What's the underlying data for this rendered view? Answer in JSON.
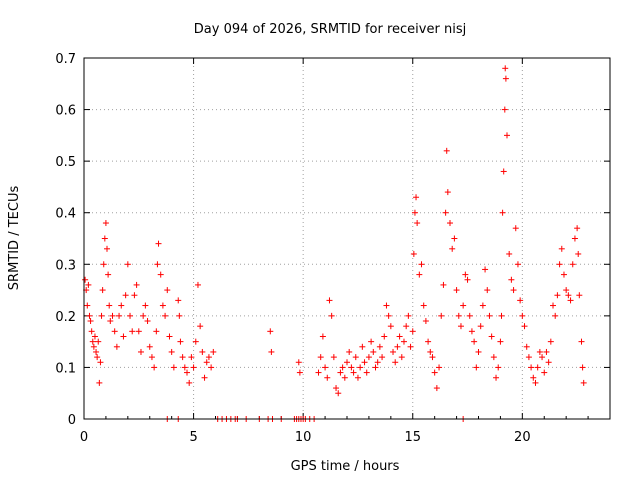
{
  "chart_data": {
    "type": "scatter",
    "title": "Day 094 of 2026, SRMTID for receiver nisj",
    "xlabel": "GPS time / hours",
    "ylabel": "SRMTID / TECUs",
    "xlim": [
      0,
      24
    ],
    "ylim": [
      0,
      0.7
    ],
    "xticks": [
      0,
      5,
      10,
      15,
      20
    ],
    "xtick_labels": [
      "0",
      "5",
      "10",
      "15",
      "20"
    ],
    "yticks": [
      0,
      0.1,
      0.2,
      0.3,
      0.4,
      0.5,
      0.6,
      0.7
    ],
    "ytick_labels": [
      "0",
      "0.1",
      "0.2",
      "0.3",
      "0.4",
      "0.5",
      "0.6",
      "0.7"
    ],
    "grid": true,
    "marker": "+",
    "color": "#ff0000",
    "series": [
      {
        "name": "SRMTID",
        "points": [
          [
            0.05,
            0.27
          ],
          [
            0.1,
            0.25
          ],
          [
            0.15,
            0.22
          ],
          [
            0.2,
            0.26
          ],
          [
            0.25,
            0.2
          ],
          [
            0.3,
            0.19
          ],
          [
            0.35,
            0.17
          ],
          [
            0.4,
            0.15
          ],
          [
            0.45,
            0.14
          ],
          [
            0.5,
            0.16
          ],
          [
            0.55,
            0.13
          ],
          [
            0.6,
            0.12
          ],
          [
            0.65,
            0.15
          ],
          [
            0.7,
            0.07
          ],
          [
            0.75,
            0.11
          ],
          [
            0.8,
            0.2
          ],
          [
            0.85,
            0.25
          ],
          [
            0.9,
            0.3
          ],
          [
            0.95,
            0.35
          ],
          [
            1.0,
            0.38
          ],
          [
            1.05,
            0.33
          ],
          [
            1.1,
            0.28
          ],
          [
            1.15,
            0.22
          ],
          [
            1.2,
            0.19
          ],
          [
            1.3,
            0.2
          ],
          [
            1.4,
            0.17
          ],
          [
            1.5,
            0.14
          ],
          [
            1.6,
            0.2
          ],
          [
            1.7,
            0.22
          ],
          [
            1.8,
            0.16
          ],
          [
            1.9,
            0.24
          ],
          [
            2.0,
            0.3
          ],
          [
            2.1,
            0.2
          ],
          [
            2.2,
            0.17
          ],
          [
            2.3,
            0.24
          ],
          [
            2.4,
            0.26
          ],
          [
            2.5,
            0.17
          ],
          [
            2.6,
            0.13
          ],
          [
            2.7,
            0.2
          ],
          [
            2.8,
            0.22
          ],
          [
            2.9,
            0.19
          ],
          [
            3.0,
            0.14
          ],
          [
            3.1,
            0.12
          ],
          [
            3.2,
            0.1
          ],
          [
            3.3,
            0.17
          ],
          [
            3.35,
            0.3
          ],
          [
            3.4,
            0.34
          ],
          [
            3.5,
            0.28
          ],
          [
            3.6,
            0.22
          ],
          [
            3.7,
            0.2
          ],
          [
            3.8,
            0.25
          ],
          [
            3.9,
            0.16
          ],
          [
            4.0,
            0.13
          ],
          [
            4.1,
            0.1
          ],
          [
            4.3,
            0.23
          ],
          [
            4.35,
            0.2
          ],
          [
            4.4,
            0.15
          ],
          [
            4.5,
            0.12
          ],
          [
            4.6,
            0.1
          ],
          [
            4.7,
            0.09
          ],
          [
            4.8,
            0.07
          ],
          [
            4.9,
            0.12
          ],
          [
            5.0,
            0.1
          ],
          [
            5.1,
            0.15
          ],
          [
            5.2,
            0.26
          ],
          [
            5.3,
            0.18
          ],
          [
            5.4,
            0.13
          ],
          [
            5.5,
            0.08
          ],
          [
            5.6,
            0.11
          ],
          [
            5.7,
            0.12
          ],
          [
            5.8,
            0.1
          ],
          [
            5.9,
            0.13
          ],
          [
            8.5,
            0.17
          ],
          [
            8.55,
            0.13
          ],
          [
            9.8,
            0.11
          ],
          [
            9.85,
            0.09
          ],
          [
            10.7,
            0.09
          ],
          [
            10.8,
            0.12
          ],
          [
            10.9,
            0.16
          ],
          [
            11.0,
            0.1
          ],
          [
            11.1,
            0.08
          ],
          [
            11.2,
            0.23
          ],
          [
            11.3,
            0.2
          ],
          [
            11.4,
            0.12
          ],
          [
            11.5,
            0.06
          ],
          [
            11.6,
            0.05
          ],
          [
            11.7,
            0.09
          ],
          [
            11.8,
            0.1
          ],
          [
            11.9,
            0.08
          ],
          [
            12.0,
            0.11
          ],
          [
            12.1,
            0.13
          ],
          [
            12.2,
            0.1
          ],
          [
            12.3,
            0.09
          ],
          [
            12.4,
            0.12
          ],
          [
            12.5,
            0.08
          ],
          [
            12.6,
            0.1
          ],
          [
            12.7,
            0.14
          ],
          [
            12.8,
            0.11
          ],
          [
            12.9,
            0.09
          ],
          [
            13.0,
            0.12
          ],
          [
            13.1,
            0.15
          ],
          [
            13.2,
            0.13
          ],
          [
            13.3,
            0.1
          ],
          [
            13.4,
            0.11
          ],
          [
            13.5,
            0.14
          ],
          [
            13.6,
            0.12
          ],
          [
            13.7,
            0.16
          ],
          [
            13.8,
            0.22
          ],
          [
            13.9,
            0.2
          ],
          [
            14.0,
            0.18
          ],
          [
            14.1,
            0.13
          ],
          [
            14.2,
            0.11
          ],
          [
            14.3,
            0.14
          ],
          [
            14.4,
            0.16
          ],
          [
            14.5,
            0.12
          ],
          [
            14.6,
            0.15
          ],
          [
            14.7,
            0.18
          ],
          [
            14.8,
            0.2
          ],
          [
            14.9,
            0.14
          ],
          [
            15.0,
            0.17
          ],
          [
            15.05,
            0.32
          ],
          [
            15.1,
            0.4
          ],
          [
            15.15,
            0.43
          ],
          [
            15.2,
            0.38
          ],
          [
            15.3,
            0.28
          ],
          [
            15.4,
            0.3
          ],
          [
            15.5,
            0.22
          ],
          [
            15.6,
            0.19
          ],
          [
            15.7,
            0.15
          ],
          [
            15.8,
            0.13
          ],
          [
            15.9,
            0.12
          ],
          [
            16.0,
            0.09
          ],
          [
            16.1,
            0.06
          ],
          [
            16.2,
            0.1
          ],
          [
            16.3,
            0.2
          ],
          [
            16.4,
            0.26
          ],
          [
            16.5,
            0.4
          ],
          [
            16.55,
            0.52
          ],
          [
            16.6,
            0.44
          ],
          [
            16.7,
            0.38
          ],
          [
            16.8,
            0.33
          ],
          [
            16.9,
            0.35
          ],
          [
            17.0,
            0.25
          ],
          [
            17.1,
            0.2
          ],
          [
            17.2,
            0.18
          ],
          [
            17.3,
            0.22
          ],
          [
            17.4,
            0.28
          ],
          [
            17.5,
            0.27
          ],
          [
            17.6,
            0.2
          ],
          [
            17.7,
            0.17
          ],
          [
            17.8,
            0.15
          ],
          [
            17.9,
            0.1
          ],
          [
            18.0,
            0.13
          ],
          [
            18.1,
            0.18
          ],
          [
            18.2,
            0.22
          ],
          [
            18.3,
            0.29
          ],
          [
            18.4,
            0.25
          ],
          [
            18.5,
            0.2
          ],
          [
            18.6,
            0.16
          ],
          [
            18.7,
            0.12
          ],
          [
            18.8,
            0.08
          ],
          [
            18.9,
            0.1
          ],
          [
            19.0,
            0.15
          ],
          [
            19.05,
            0.2
          ],
          [
            19.1,
            0.4
          ],
          [
            19.15,
            0.48
          ],
          [
            19.2,
            0.6
          ],
          [
            19.22,
            0.68
          ],
          [
            19.25,
            0.66
          ],
          [
            19.3,
            0.55
          ],
          [
            19.4,
            0.32
          ],
          [
            19.5,
            0.27
          ],
          [
            19.6,
            0.25
          ],
          [
            19.7,
            0.37
          ],
          [
            19.8,
            0.3
          ],
          [
            19.9,
            0.23
          ],
          [
            20.0,
            0.2
          ],
          [
            20.1,
            0.18
          ],
          [
            20.2,
            0.14
          ],
          [
            20.3,
            0.12
          ],
          [
            20.4,
            0.1
          ],
          [
            20.5,
            0.08
          ],
          [
            20.6,
            0.07
          ],
          [
            20.7,
            0.1
          ],
          [
            20.8,
            0.13
          ],
          [
            20.9,
            0.12
          ],
          [
            21.0,
            0.09
          ],
          [
            21.1,
            0.13
          ],
          [
            21.2,
            0.11
          ],
          [
            21.3,
            0.15
          ],
          [
            21.4,
            0.22
          ],
          [
            21.5,
            0.2
          ],
          [
            21.6,
            0.24
          ],
          [
            21.7,
            0.3
          ],
          [
            21.8,
            0.33
          ],
          [
            21.9,
            0.28
          ],
          [
            22.0,
            0.25
          ],
          [
            22.1,
            0.24
          ],
          [
            22.2,
            0.23
          ],
          [
            22.3,
            0.3
          ],
          [
            22.4,
            0.35
          ],
          [
            22.5,
            0.37
          ],
          [
            22.55,
            0.32
          ],
          [
            22.6,
            0.24
          ],
          [
            22.7,
            0.15
          ],
          [
            22.75,
            0.1
          ],
          [
            22.8,
            0.07
          ],
          [
            3.8,
            0
          ],
          [
            4.3,
            0
          ],
          [
            6.1,
            0
          ],
          [
            6.3,
            0
          ],
          [
            6.5,
            0
          ],
          [
            6.7,
            0
          ],
          [
            6.9,
            0
          ],
          [
            7.0,
            0
          ],
          [
            7.4,
            0
          ],
          [
            8.0,
            0
          ],
          [
            8.4,
            0
          ],
          [
            8.6,
            0
          ],
          [
            9.0,
            0
          ],
          [
            9.6,
            0
          ],
          [
            9.7,
            0
          ],
          [
            9.8,
            0
          ],
          [
            9.9,
            0
          ],
          [
            10.0,
            0
          ],
          [
            10.1,
            0
          ],
          [
            10.3,
            0
          ],
          [
            10.5,
            0
          ],
          [
            17.3,
            0
          ]
        ]
      }
    ]
  }
}
